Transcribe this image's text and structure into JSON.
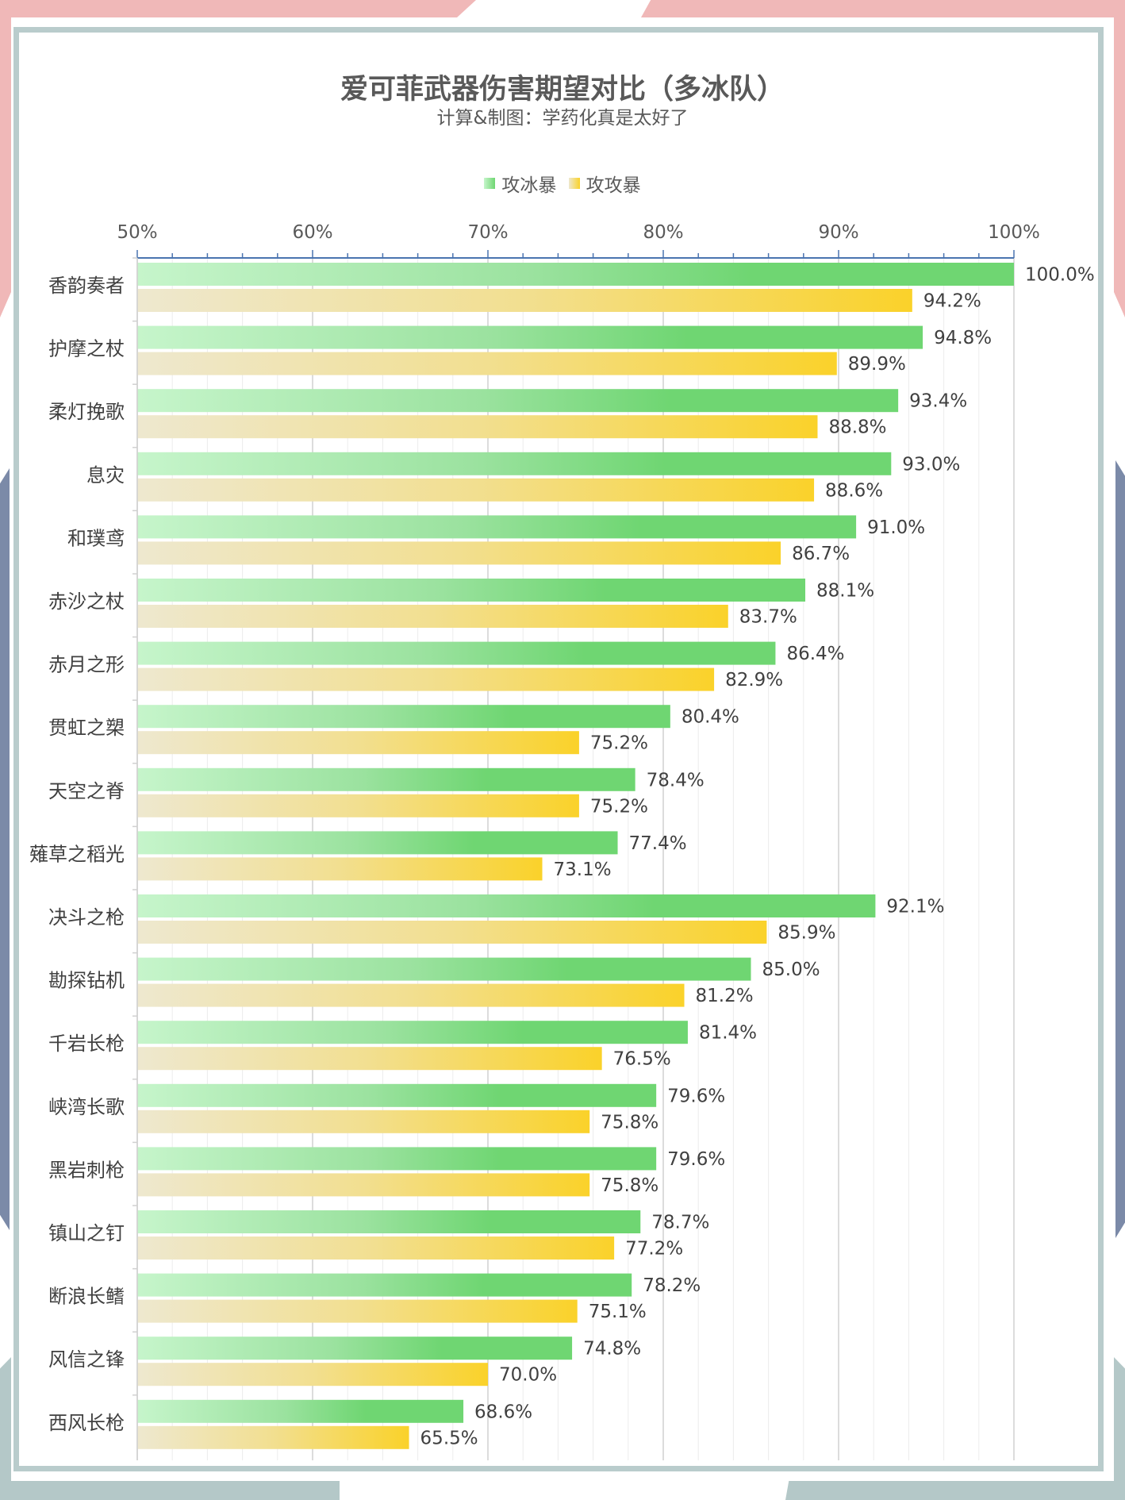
{
  "chart_data": {
    "type": "bar",
    "orientation": "horizontal",
    "title": "爱可菲武器伤害期望对比（多冰队）",
    "subtitle": "计算&制图：学药化真是太好了",
    "legend_position": "top",
    "xlim": [
      50,
      100
    ],
    "x_ticks": [
      "50%",
      "60%",
      "70%",
      "80%",
      "90%",
      "100%"
    ],
    "x_tick_values": [
      50,
      60,
      70,
      80,
      90,
      100
    ],
    "grid": true,
    "categories": [
      "香韵奏者",
      "护摩之杖",
      "柔灯挽歌",
      "息灾",
      "和璞鸢",
      "赤沙之杖",
      "赤月之形",
      "贯虹之槊",
      "天空之脊",
      "薙草之稻光",
      "决斗之枪",
      "勘探钻机",
      "千岩长枪",
      "峡湾长歌",
      "黑岩刺枪",
      "镇山之钉",
      "断浪长鳍",
      "风信之锋",
      "西风长枪"
    ],
    "series": [
      {
        "name": "攻冰暴",
        "color_start": "#c6f5cb",
        "color_end": "#6fd672",
        "values": [
          100.0,
          94.8,
          93.4,
          93.0,
          91.0,
          88.1,
          86.4,
          80.4,
          78.4,
          77.4,
          92.1,
          85.0,
          81.4,
          79.6,
          79.6,
          78.7,
          78.2,
          74.8,
          68.6
        ],
        "labels": [
          "100.0%",
          "94.8%",
          "93.4%",
          "93.0%",
          "91.0%",
          "88.1%",
          "86.4%",
          "80.4%",
          "78.4%",
          "77.4%",
          "92.1%",
          "85.0%",
          "81.4%",
          "79.6%",
          "79.6%",
          "78.7%",
          "78.2%",
          "74.8%",
          "68.6%"
        ]
      },
      {
        "name": "攻攻暴",
        "color_start": "#eee8cf",
        "color_end": "#fad22a",
        "values": [
          94.2,
          89.9,
          88.8,
          88.6,
          86.7,
          83.7,
          82.9,
          75.2,
          75.2,
          73.1,
          85.9,
          81.2,
          76.5,
          75.8,
          75.8,
          77.2,
          75.1,
          70.0,
          65.5
        ],
        "labels": [
          "94.2%",
          "89.9%",
          "88.8%",
          "88.6%",
          "86.7%",
          "83.7%",
          "82.9%",
          "75.2%",
          "75.2%",
          "73.1%",
          "85.9%",
          "81.2%",
          "76.5%",
          "75.8%",
          "75.8%",
          "77.2%",
          "75.1%",
          "70.0%",
          "65.5%"
        ]
      }
    ]
  }
}
